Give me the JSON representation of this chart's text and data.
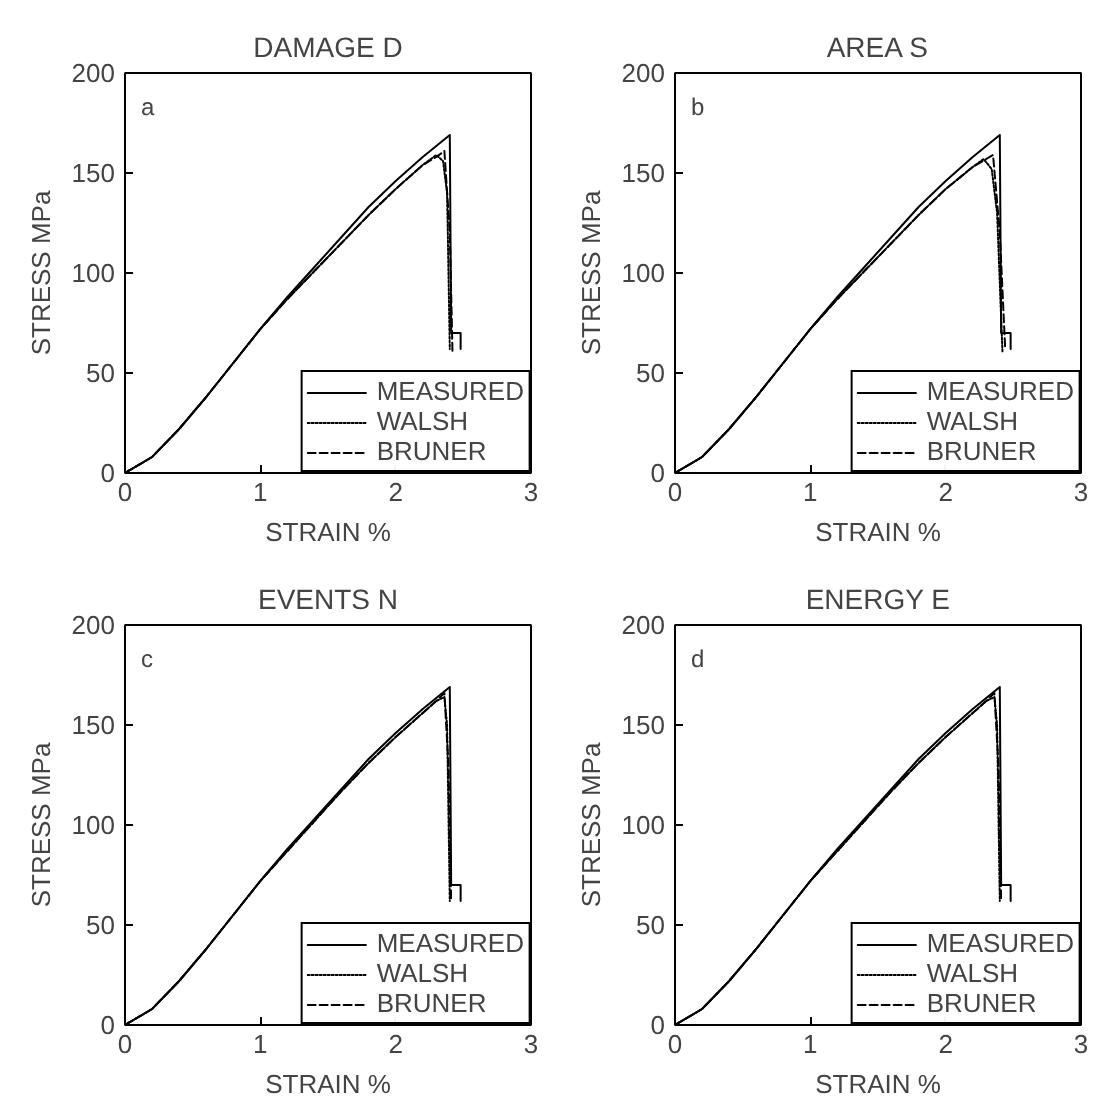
{
  "chart_data": [
    {
      "type": "line",
      "title": "DAMAGE D",
      "xlabel": "STRAIN %",
      "ylabel": "STRESS MPa",
      "annotations": [
        "a"
      ],
      "xlim": [
        0,
        3
      ],
      "ylim": [
        0,
        200
      ],
      "xticks": [
        0,
        1,
        2,
        3
      ],
      "yticks": [
        0,
        50,
        100,
        150,
        200
      ],
      "grid": false,
      "legend": "bottom right",
      "series": [
        {
          "name": "MEASURED",
          "color": "#000000",
          "line_style": "solid",
          "x": [
            0,
            0.2,
            0.4,
            0.6,
            0.8,
            1.0,
            1.2,
            1.4,
            1.6,
            1.8,
            2.0,
            2.2,
            2.4,
            2.41,
            2.48,
            2.48
          ],
          "values": [
            0,
            8,
            22,
            38,
            55,
            72,
            88,
            103,
            118,
            133,
            146,
            158,
            169,
            70,
            70,
            62
          ]
        },
        {
          "name": "WALSH",
          "color": "#000000",
          "line_style": "dotted",
          "x": [
            0,
            0.2,
            0.4,
            0.6,
            0.8,
            1.0,
            1.2,
            1.4,
            1.6,
            1.8,
            2.0,
            2.2,
            2.3,
            2.35,
            2.38,
            2.4
          ],
          "values": [
            0,
            8,
            22,
            38,
            55,
            72,
            87,
            101,
            115,
            129,
            142,
            154,
            159,
            156,
            140,
            62
          ]
        },
        {
          "name": "BRUNER",
          "color": "#000000",
          "line_style": "dashed",
          "x": [
            0,
            0.2,
            0.4,
            0.6,
            0.8,
            1.0,
            1.2,
            1.4,
            1.6,
            1.8,
            2.0,
            2.2,
            2.3,
            2.36,
            2.4,
            2.42
          ],
          "values": [
            0,
            8,
            22,
            38,
            55,
            72,
            87,
            101,
            115,
            129,
            142,
            154,
            158,
            161,
            120,
            60
          ]
        }
      ]
    },
    {
      "type": "line",
      "title": "AREA S",
      "xlabel": "STRAIN %",
      "ylabel": "STRESS MPa",
      "annotations": [
        "b"
      ],
      "xlim": [
        0,
        3
      ],
      "ylim": [
        0,
        200
      ],
      "xticks": [
        0,
        1,
        2,
        3
      ],
      "yticks": [
        0,
        50,
        100,
        150,
        200
      ],
      "grid": false,
      "legend": "bottom right",
      "series": [
        {
          "name": "MEASURED",
          "color": "#000000",
          "line_style": "solid",
          "x": [
            0,
            0.2,
            0.4,
            0.6,
            0.8,
            1.0,
            1.2,
            1.4,
            1.6,
            1.8,
            2.0,
            2.2,
            2.4,
            2.41,
            2.48,
            2.48
          ],
          "values": [
            0,
            8,
            22,
            38,
            55,
            72,
            88,
            103,
            118,
            133,
            146,
            158,
            169,
            70,
            70,
            62
          ]
        },
        {
          "name": "WALSH",
          "color": "#000000",
          "line_style": "dotted",
          "x": [
            0,
            0.2,
            0.4,
            0.6,
            0.8,
            1.0,
            1.2,
            1.4,
            1.6,
            1.8,
            2.0,
            2.2,
            2.28,
            2.34,
            2.38,
            2.42
          ],
          "values": [
            0,
            8,
            22,
            38,
            55,
            72,
            87,
            101,
            115,
            129,
            142,
            153,
            157,
            152,
            130,
            60
          ]
        },
        {
          "name": "BRUNER",
          "color": "#000000",
          "line_style": "dashed",
          "x": [
            0,
            0.2,
            0.4,
            0.6,
            0.8,
            1.0,
            1.2,
            1.4,
            1.6,
            1.8,
            2.0,
            2.2,
            2.3,
            2.35,
            2.4,
            2.44
          ],
          "values": [
            0,
            8,
            22,
            38,
            55,
            72,
            87,
            101,
            115,
            129,
            142,
            153,
            157,
            159,
            120,
            62
          ]
        }
      ]
    },
    {
      "type": "line",
      "title": "EVENTS N",
      "xlabel": "STRAIN %",
      "ylabel": "STRESS MPa",
      "annotations": [
        "c"
      ],
      "xlim": [
        0,
        3
      ],
      "ylim": [
        0,
        200
      ],
      "xticks": [
        0,
        1,
        2,
        3
      ],
      "yticks": [
        0,
        50,
        100,
        150,
        200
      ],
      "grid": false,
      "legend": "bottom right",
      "series": [
        {
          "name": "MEASURED",
          "color": "#000000",
          "line_style": "solid",
          "x": [
            0,
            0.2,
            0.4,
            0.6,
            0.8,
            1.0,
            1.2,
            1.4,
            1.6,
            1.8,
            2.0,
            2.2,
            2.4,
            2.41,
            2.48,
            2.48
          ],
          "values": [
            0,
            8,
            22,
            38,
            55,
            72,
            88,
            103,
            118,
            133,
            146,
            158,
            169,
            70,
            70,
            62
          ]
        },
        {
          "name": "WALSH",
          "color": "#000000",
          "line_style": "dotted",
          "x": [
            0,
            0.2,
            0.4,
            0.6,
            0.8,
            1.0,
            1.2,
            1.4,
            1.6,
            1.8,
            2.0,
            2.2,
            2.3,
            2.36,
            2.38,
            2.4
          ],
          "values": [
            0,
            8,
            22,
            38,
            55,
            72,
            87,
            102,
            117,
            131,
            144,
            156,
            162,
            164,
            150,
            62
          ]
        },
        {
          "name": "BRUNER",
          "color": "#000000",
          "line_style": "dashed",
          "x": [
            0,
            0.2,
            0.4,
            0.6,
            0.8,
            1.0,
            1.2,
            1.4,
            1.6,
            1.8,
            2.0,
            2.2,
            2.3,
            2.36,
            2.39,
            2.41
          ],
          "values": [
            0,
            8,
            22,
            38,
            55,
            72,
            87,
            102,
            117,
            131,
            144,
            156,
            162,
            166,
            130,
            62
          ]
        }
      ]
    },
    {
      "type": "line",
      "title": "ENERGY E",
      "xlabel": "STRAIN %",
      "ylabel": "STRESS MPa",
      "annotations": [
        "d"
      ],
      "xlim": [
        0,
        3
      ],
      "ylim": [
        0,
        200
      ],
      "xticks": [
        0,
        1,
        2,
        3
      ],
      "yticks": [
        0,
        50,
        100,
        150,
        200
      ],
      "grid": false,
      "legend": "bottom right",
      "series": [
        {
          "name": "MEASURED",
          "color": "#000000",
          "line_style": "solid",
          "x": [
            0,
            0.2,
            0.4,
            0.6,
            0.8,
            1.0,
            1.2,
            1.4,
            1.6,
            1.8,
            2.0,
            2.2,
            2.4,
            2.41,
            2.48,
            2.48
          ],
          "values": [
            0,
            8,
            22,
            38,
            55,
            72,
            88,
            103,
            118,
            133,
            146,
            158,
            169,
            70,
            70,
            62
          ]
        },
        {
          "name": "WALSH",
          "color": "#000000",
          "line_style": "dotted",
          "x": [
            0,
            0.2,
            0.4,
            0.6,
            0.8,
            1.0,
            1.2,
            1.4,
            1.6,
            1.8,
            2.0,
            2.2,
            2.3,
            2.36,
            2.38,
            2.4
          ],
          "values": [
            0,
            8,
            22,
            38,
            55,
            72,
            87,
            102,
            117,
            131,
            144,
            156,
            162,
            164,
            150,
            62
          ]
        },
        {
          "name": "BRUNER",
          "color": "#000000",
          "line_style": "dashed",
          "x": [
            0,
            0.2,
            0.4,
            0.6,
            0.8,
            1.0,
            1.2,
            1.4,
            1.6,
            1.8,
            2.0,
            2.2,
            2.3,
            2.36,
            2.39,
            2.41
          ],
          "values": [
            0,
            8,
            22,
            38,
            55,
            72,
            87,
            102,
            117,
            131,
            144,
            156,
            162,
            166,
            130,
            62
          ]
        }
      ]
    }
  ]
}
